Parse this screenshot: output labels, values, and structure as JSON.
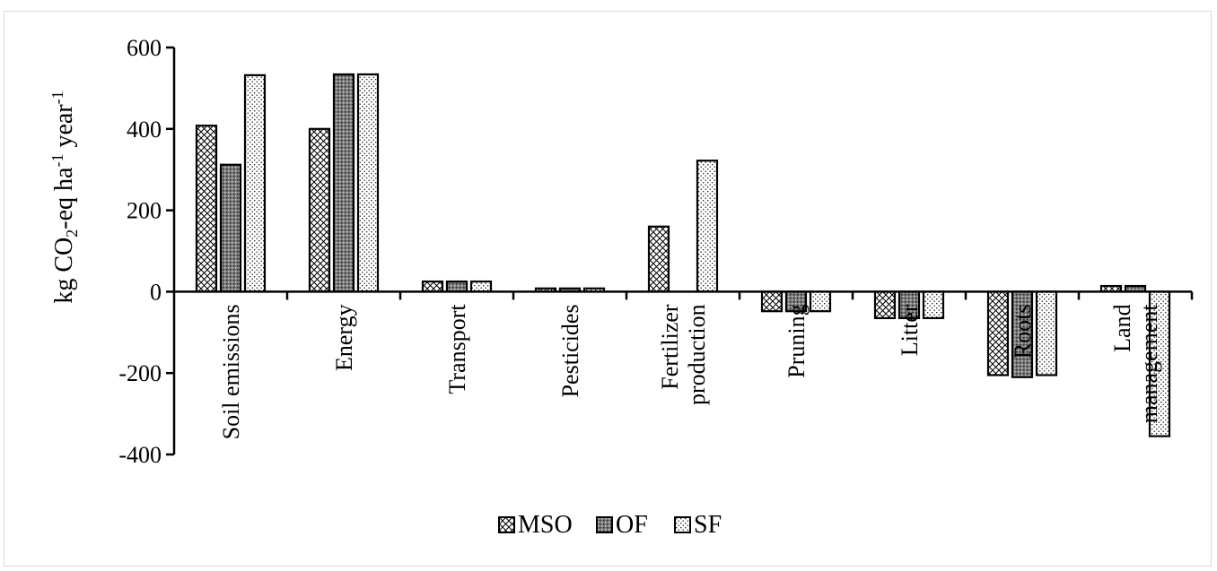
{
  "chart_data": {
    "type": "bar",
    "categories": [
      [
        "Soil emissions"
      ],
      [
        "Energy"
      ],
      [
        "Transport"
      ],
      [
        "Pesticides"
      ],
      [
        "Fertilizer",
        "production"
      ],
      [
        "Pruning"
      ],
      [
        "Litter"
      ],
      [
        "Roots"
      ],
      [
        "Land",
        "management"
      ]
    ],
    "series": [
      {
        "name": "MSO",
        "pattern": "crosshatch",
        "values": [
          408,
          400,
          25,
          8,
          160,
          -48,
          -65,
          -205,
          14
        ]
      },
      {
        "name": "OF",
        "pattern": "dense-dots",
        "values": [
          312,
          534,
          25,
          8,
          0,
          -48,
          -65,
          -210,
          14
        ]
      },
      {
        "name": "SF",
        "pattern": "light-dots",
        "values": [
          532,
          534,
          25,
          8,
          322,
          -48,
          -65,
          -205,
          -355
        ]
      }
    ],
    "ylabel": {
      "main": "kg CO",
      "sub": "2",
      "mid": "-eq ha",
      "sup1": "-1",
      "tail": " year",
      "sup2": "-1"
    },
    "yticks": [
      600,
      400,
      200,
      0,
      -200,
      -400
    ],
    "ytick_labels": [
      "600",
      "400",
      "200",
      "0",
      "-200",
      "-400"
    ],
    "ylim": [
      -400,
      600
    ],
    "grid": false,
    "legend_position": "bottom",
    "colors": {
      "bar_stroke": "#000000",
      "of_fill": "#7f7f7f",
      "axis": "#000000"
    }
  }
}
